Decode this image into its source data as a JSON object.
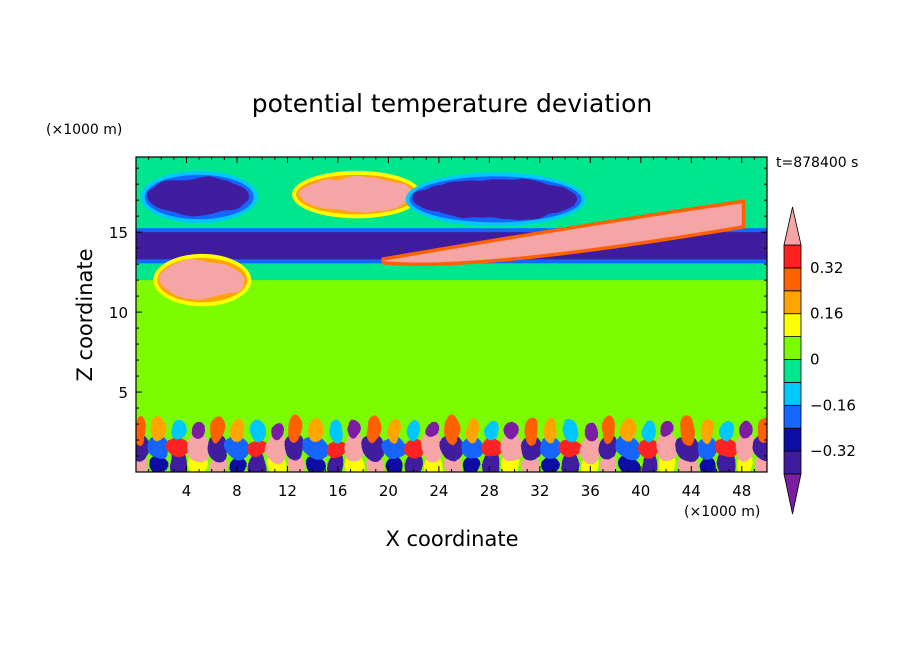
{
  "chart_data": {
    "type": "heatmap",
    "title": "potential temperature deviation",
    "xlabel": "X coordinate",
    "ylabel": "Z coordinate",
    "x_unit": "(×1000 m)",
    "y_unit": "(×1000 m)",
    "time_label": "t=878400 s",
    "xlim": [
      0,
      50
    ],
    "ylim": [
      0,
      19.7
    ],
    "x_ticks": [
      4,
      8,
      12,
      16,
      20,
      24,
      28,
      32,
      36,
      40,
      44,
      48
    ],
    "y_ticks": [
      5,
      10,
      15
    ],
    "colorbar": {
      "levels": [
        -0.4,
        -0.32,
        -0.24,
        -0.16,
        -0.08,
        0,
        0.08,
        0.16,
        0.24,
        0.32,
        0.4
      ],
      "labels": [
        {
          "value": 0.32,
          "text": "0.32"
        },
        {
          "value": 0.16,
          "text": "0.16"
        },
        {
          "value": 0,
          "text": "0"
        },
        {
          "value": -0.16,
          "text": "−0.16"
        },
        {
          "value": -0.32,
          "text": "−0.32"
        }
      ],
      "colors_low_to_high": [
        "#7b1fa2",
        "#3f1c9e",
        "#0d0da5",
        "#1565ff",
        "#00c8ff",
        "#00e68c",
        "#7cfc00",
        "#ffff00",
        "#ffa500",
        "#ff6000",
        "#ff2020",
        "#f5a5a5"
      ],
      "extend": "both"
    },
    "features": [
      {
        "kind": "layer",
        "zlim": [
          0,
          3.5
        ],
        "description_value": "turbulent boundary layer, mixed ±0.4"
      },
      {
        "kind": "layer",
        "zlim": [
          13.3,
          15
        ],
        "value": -0.4
      },
      {
        "kind": "blob",
        "x": [
          13,
          22
        ],
        "z": [
          16.3,
          18.4
        ],
        "value": 0.4
      },
      {
        "kind": "blob",
        "x": [
          1,
          9
        ],
        "z": [
          16,
          18.4
        ],
        "value": -0.4
      },
      {
        "kind": "blob",
        "x": [
          22,
          35
        ],
        "z": [
          15.8,
          18.3
        ],
        "value": -0.4
      },
      {
        "kind": "plume",
        "x": [
          19.5,
          48
        ],
        "z": [
          13.2,
          16.8
        ],
        "value": 0.4
      },
      {
        "kind": "blob",
        "x": [
          2,
          8.5
        ],
        "z": [
          10.8,
          13.2
        ],
        "value": 0.4
      }
    ]
  }
}
